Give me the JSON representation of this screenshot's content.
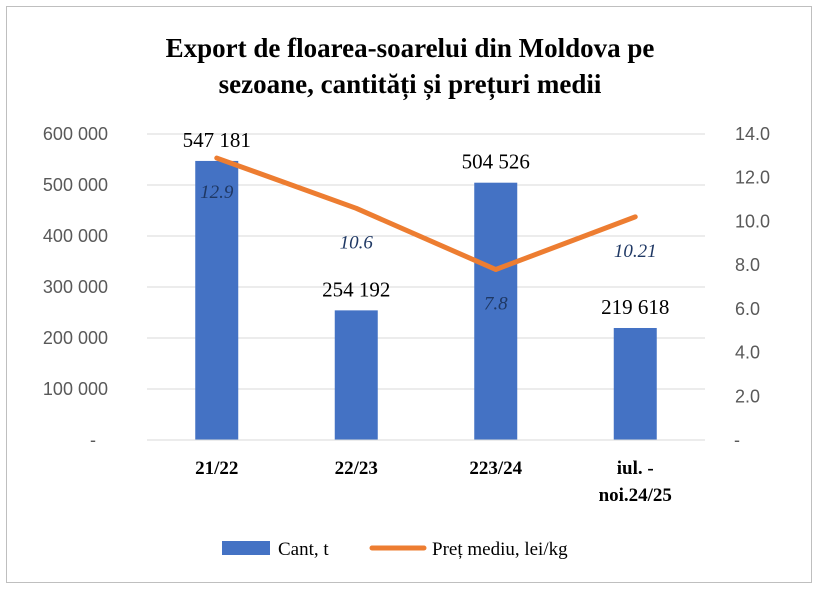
{
  "chart_data": {
    "type": "bar",
    "title_lines": [
      "Export de floarea-soarelui  din  Moldova pe",
      "sezoane, cantități și prețuri medii"
    ],
    "categories": [
      [
        "21/22"
      ],
      [
        "22/23"
      ],
      [
        "223/24"
      ],
      [
        "iul. -",
        "noi.24/25"
      ]
    ],
    "series": [
      {
        "name": "Cant, t",
        "type": "bar",
        "axis": "left",
        "color": "#4472c4",
        "values": [
          547181,
          254192,
          504526,
          219618
        ],
        "labels": [
          "547 181",
          "254 192",
          "504 526",
          "219 618"
        ]
      },
      {
        "name": "Preț mediu, lei/kg",
        "type": "line",
        "axis": "right",
        "color": "#ed7d31",
        "values": [
          12.9,
          10.6,
          7.8,
          10.21
        ],
        "labels": [
          "12.9",
          "10.6",
          "7.8",
          "10.21"
        ]
      }
    ],
    "y_left": {
      "ylim": [
        0,
        600000
      ],
      "ticks": [
        0,
        100000,
        200000,
        300000,
        400000,
        500000,
        600000
      ],
      "tick_labels": [
        "-",
        "100 000",
        "200 000",
        "300 000",
        "400 000",
        "500 000",
        "600 000"
      ]
    },
    "y_right": {
      "ylim": [
        0,
        14
      ],
      "ticks": [
        0,
        2,
        4,
        6,
        8,
        10,
        12,
        14
      ],
      "tick_labels": [
        "-",
        "2.0",
        "4.0",
        "6.0",
        "8.0",
        "10.0",
        "12.0",
        "14.0"
      ]
    },
    "grid": true,
    "legend_position": "bottom"
  }
}
